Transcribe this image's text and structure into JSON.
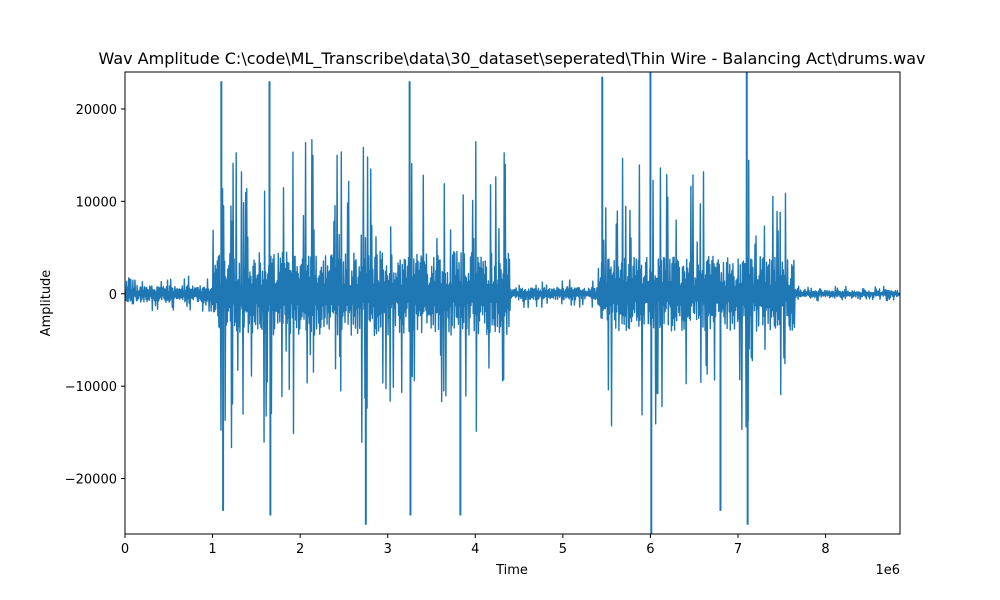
{
  "chart_data": {
    "type": "line",
    "title": "Wav Amplitude C:\\code\\ML_Transcribe\\data\\30_dataset\\seperated\\Thin Wire - Balancing Act\\drums.wav",
    "xlabel": "Time",
    "ylabel": "Amplitude",
    "x_offset_label": "1e6",
    "xlim": [
      0,
      8850000
    ],
    "ylim": [
      -26000,
      24000
    ],
    "x_ticks": [
      0,
      1,
      2,
      3,
      4,
      5,
      6,
      7,
      8
    ],
    "x_tick_labels": [
      "0",
      "1",
      "2",
      "3",
      "4",
      "5",
      "6",
      "7",
      "8"
    ],
    "y_ticks": [
      -20000,
      -10000,
      0,
      10000,
      20000
    ],
    "y_tick_labels": [
      "−20000",
      "−10000",
      "0",
      "10000",
      "20000"
    ],
    "grid": false,
    "line_color": "#1f77b4",
    "series": [
      {
        "segments": [
          {
            "x_start": 0,
            "x_end": 1000000,
            "amplitude": 2000,
            "peak_spacing": 40000
          },
          {
            "x_start": 1000000,
            "x_end": 4400000,
            "amplitude": 17000,
            "peak_spacing": 60000
          },
          {
            "x_start": 4400000,
            "x_end": 5400000,
            "amplitude": 1500,
            "peak_spacing": 60000
          },
          {
            "x_start": 5400000,
            "x_end": 7650000,
            "amplitude": 15000,
            "peak_spacing": 60000
          },
          {
            "x_start": 7650000,
            "x_end": 8850000,
            "amplitude": 800,
            "peak_spacing": 80000
          }
        ],
        "peaks": [
          {
            "x": 1100000,
            "y": 23000
          },
          {
            "x": 1120000,
            "y": -23500
          },
          {
            "x": 1650000,
            "y": 23000
          },
          {
            "x": 1660000,
            "y": -24000
          },
          {
            "x": 2750000,
            "y": -25000
          },
          {
            "x": 3250000,
            "y": 23000
          },
          {
            "x": 3260000,
            "y": -24000
          },
          {
            "x": 3830000,
            "y": -24000
          },
          {
            "x": 5450000,
            "y": 23500
          },
          {
            "x": 6000000,
            "y": 24000
          },
          {
            "x": 6010000,
            "y": -26000
          },
          {
            "x": 6800000,
            "y": -23500
          },
          {
            "x": 7100000,
            "y": 24000
          },
          {
            "x": 7110000,
            "y": -25000
          }
        ]
      }
    ]
  }
}
